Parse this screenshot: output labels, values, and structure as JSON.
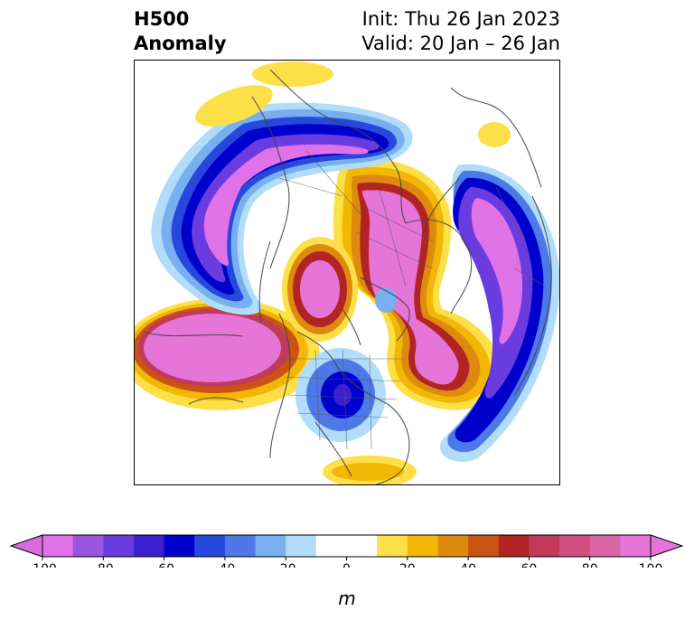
{
  "title": {
    "left_line1": "H500",
    "left_line2": "Anomaly",
    "right_line1": "Init: Thu 26 Jan 2023",
    "right_line2": "Valid: 20 Jan – 26 Jan"
  },
  "map": {
    "projection": "north-polar-stereographic",
    "field": "500 hPa geopotential height anomaly",
    "features": [
      "coastlines",
      "country-borders",
      "state-borders",
      "filled-contours"
    ]
  },
  "colorbar": {
    "unit_label": "m",
    "ticks": [
      "-100",
      "-80",
      "-60",
      "-40",
      "-20",
      "0",
      "20",
      "40",
      "60",
      "80",
      "100"
    ],
    "levels": [
      -100,
      -90,
      -80,
      -70,
      -60,
      -50,
      -40,
      -30,
      -20,
      -10,
      10,
      20,
      30,
      40,
      50,
      60,
      70,
      80,
      90,
      100
    ],
    "colors": [
      "#e072e8",
      "#9b55dd",
      "#6a3cdf",
      "#3a20cf",
      "#0000cd",
      "#2748dc",
      "#4d79e8",
      "#78aff0",
      "#b1ddfb",
      "#ffffff",
      "#fde047",
      "#f2b705",
      "#de8a0e",
      "#c95414",
      "#b22323",
      "#c23a59",
      "#d04f7f",
      "#d964a6",
      "#e575d6"
    ],
    "extend_low_color": "#d86be0",
    "extend_high_color": "#e573d8"
  }
}
